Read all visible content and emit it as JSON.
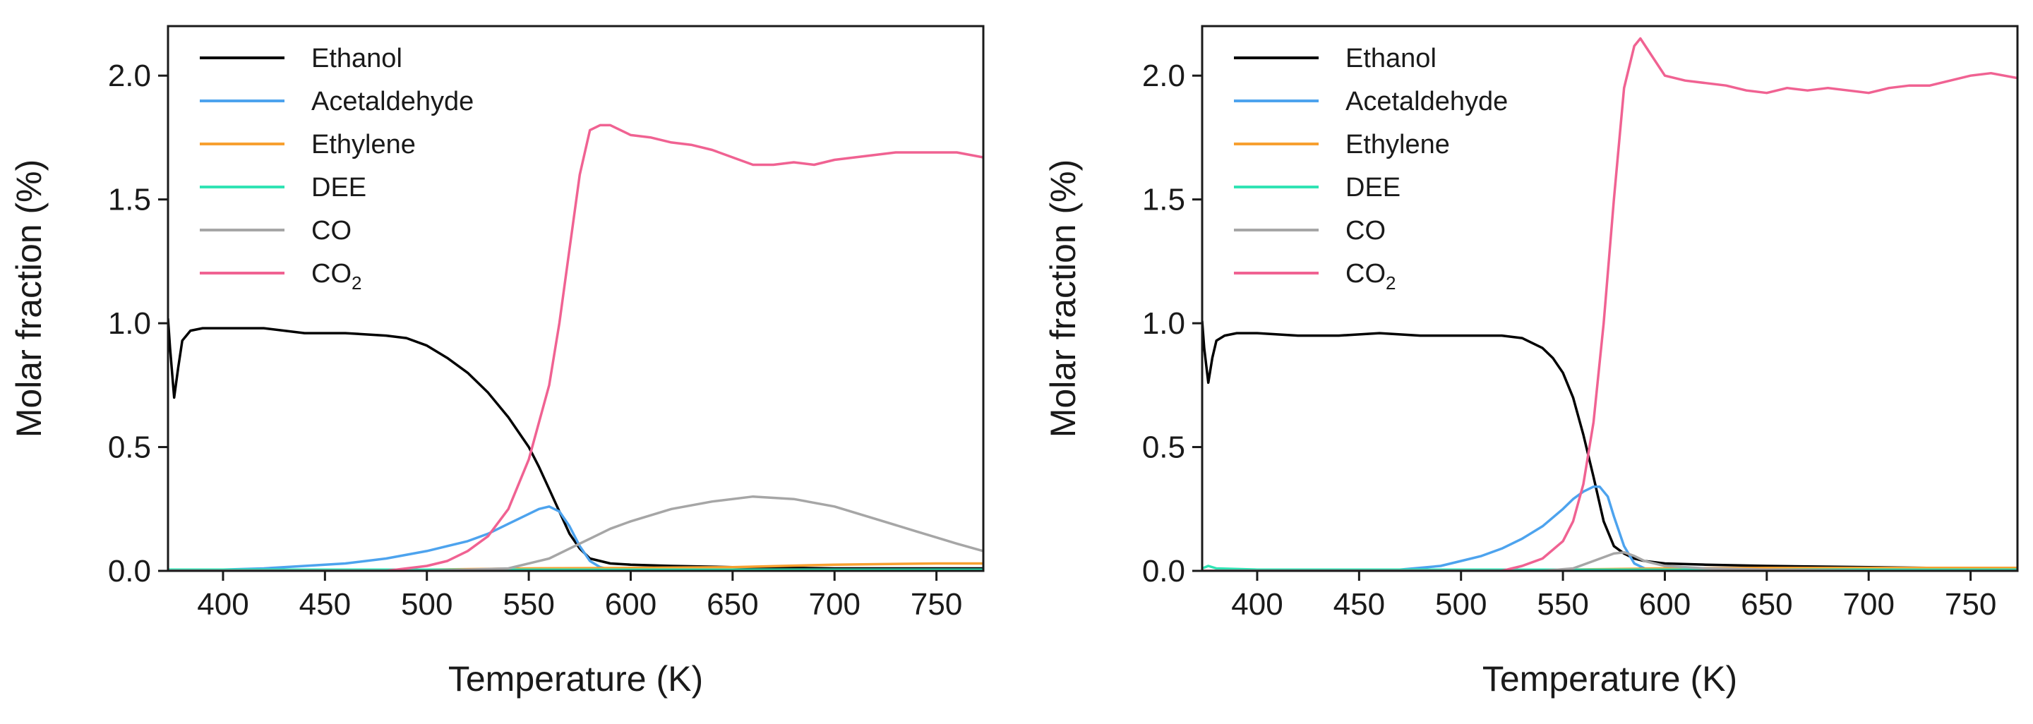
{
  "figure": {
    "background": "#ffffff"
  },
  "chart_data": [
    {
      "type": "line",
      "title": "",
      "xlabel": "Temperature (K)",
      "ylabel": "Molar fraction (%)",
      "xlim": [
        373,
        773
      ],
      "ylim": [
        0,
        2.2
      ],
      "xticks": [
        400,
        450,
        500,
        550,
        600,
        650,
        700,
        750
      ],
      "yticks": [
        0.0,
        0.5,
        1.0,
        1.5,
        2.0
      ],
      "xtick_labels": [
        "400",
        "450",
        "500",
        "550",
        "600",
        "650",
        "700",
        "750"
      ],
      "ytick_labels": [
        "0.0",
        "0.5",
        "1.0",
        "1.5",
        "2.0"
      ],
      "grid": false,
      "legend": {
        "position": "top-left"
      },
      "series": [
        {
          "name": "Ethanol",
          "color": "#000000",
          "x": [
            373,
            374,
            376,
            378,
            380,
            384,
            390,
            400,
            420,
            440,
            460,
            480,
            490,
            500,
            510,
            520,
            530,
            540,
            550,
            555,
            560,
            565,
            570,
            575,
            580,
            585,
            590,
            600,
            620,
            650,
            700,
            750,
            773
          ],
          "y": [
            1.02,
            0.9,
            0.7,
            0.82,
            0.93,
            0.97,
            0.98,
            0.98,
            0.98,
            0.96,
            0.96,
            0.95,
            0.94,
            0.91,
            0.86,
            0.8,
            0.72,
            0.62,
            0.5,
            0.42,
            0.33,
            0.24,
            0.15,
            0.09,
            0.05,
            0.04,
            0.03,
            0.025,
            0.02,
            0.015,
            0.01,
            0.01,
            0.01
          ]
        },
        {
          "name": "Acetaldehyde",
          "color": "#4da3ee",
          "x": [
            373,
            400,
            420,
            440,
            460,
            480,
            500,
            520,
            530,
            540,
            550,
            555,
            560,
            565,
            570,
            575,
            580,
            585,
            590,
            600,
            650,
            700,
            773
          ],
          "y": [
            0.0,
            0.005,
            0.01,
            0.02,
            0.03,
            0.05,
            0.08,
            0.12,
            0.15,
            0.19,
            0.23,
            0.25,
            0.26,
            0.24,
            0.18,
            0.1,
            0.04,
            0.015,
            0.005,
            0.0,
            0.0,
            0.0,
            0.0
          ]
        },
        {
          "name": "Ethylene",
          "color": "#f7a030",
          "x": [
            373,
            450,
            500,
            550,
            600,
            650,
            700,
            750,
            773
          ],
          "y": [
            0.0,
            0.0,
            0.005,
            0.01,
            0.012,
            0.015,
            0.025,
            0.03,
            0.03
          ]
        },
        {
          "name": "DEE",
          "color": "#30e3b4",
          "x": [
            373,
            450,
            500,
            550,
            600,
            650,
            700,
            773
          ],
          "y": [
            0.005,
            0.005,
            0.005,
            0.005,
            0.005,
            0.005,
            0.005,
            0.005
          ]
        },
        {
          "name": "CO",
          "color": "#a6a6a6",
          "x": [
            373,
            500,
            540,
            560,
            570,
            580,
            590,
            600,
            620,
            640,
            660,
            680,
            700,
            720,
            740,
            760,
            773
          ],
          "y": [
            0.0,
            0.0,
            0.01,
            0.05,
            0.09,
            0.13,
            0.17,
            0.2,
            0.25,
            0.28,
            0.3,
            0.29,
            0.26,
            0.21,
            0.16,
            0.11,
            0.08
          ]
        },
        {
          "name": "CO2",
          "legend_text": "CO",
          "legend_subscript": "2",
          "color": "#f06292",
          "x": [
            373,
            480,
            500,
            510,
            520,
            530,
            540,
            550,
            560,
            565,
            570,
            575,
            580,
            585,
            590,
            600,
            610,
            620,
            630,
            640,
            650,
            660,
            670,
            680,
            690,
            700,
            710,
            720,
            730,
            740,
            750,
            760,
            773
          ],
          "y": [
            0.0,
            0.0,
            0.02,
            0.04,
            0.08,
            0.14,
            0.25,
            0.45,
            0.75,
            1.0,
            1.3,
            1.6,
            1.78,
            1.8,
            1.8,
            1.76,
            1.75,
            1.73,
            1.72,
            1.7,
            1.67,
            1.64,
            1.64,
            1.65,
            1.64,
            1.66,
            1.67,
            1.68,
            1.69,
            1.69,
            1.69,
            1.69,
            1.67
          ]
        }
      ]
    },
    {
      "type": "line",
      "title": "",
      "xlabel": "Temperature (K)",
      "ylabel": "Molar fraction (%)",
      "xlim": [
        373,
        773
      ],
      "ylim": [
        0,
        2.2
      ],
      "xticks": [
        400,
        450,
        500,
        550,
        600,
        650,
        700,
        750
      ],
      "yticks": [
        0.0,
        0.5,
        1.0,
        1.5,
        2.0
      ],
      "xtick_labels": [
        "400",
        "450",
        "500",
        "550",
        "600",
        "650",
        "700",
        "750"
      ],
      "ytick_labels": [
        "0.0",
        "0.5",
        "1.0",
        "1.5",
        "2.0"
      ],
      "grid": false,
      "legend": {
        "position": "top-left"
      },
      "series": [
        {
          "name": "Ethanol",
          "color": "#000000",
          "x": [
            373,
            374,
            376,
            378,
            380,
            384,
            390,
            400,
            420,
            440,
            460,
            480,
            500,
            520,
            530,
            540,
            545,
            550,
            555,
            560,
            565,
            570,
            575,
            580,
            585,
            590,
            600,
            620,
            650,
            700,
            750,
            773
          ],
          "y": [
            1.01,
            0.9,
            0.76,
            0.86,
            0.93,
            0.95,
            0.96,
            0.96,
            0.95,
            0.95,
            0.96,
            0.95,
            0.95,
            0.95,
            0.94,
            0.9,
            0.86,
            0.8,
            0.7,
            0.55,
            0.38,
            0.2,
            0.1,
            0.07,
            0.05,
            0.04,
            0.03,
            0.025,
            0.02,
            0.015,
            0.01,
            0.01
          ]
        },
        {
          "name": "Acetaldehyde",
          "color": "#4da3ee",
          "x": [
            373,
            450,
            470,
            490,
            500,
            510,
            520,
            530,
            540,
            550,
            555,
            560,
            565,
            568,
            572,
            575,
            580,
            585,
            590,
            600,
            650,
            773
          ],
          "y": [
            0.0,
            0.0,
            0.005,
            0.02,
            0.04,
            0.06,
            0.09,
            0.13,
            0.18,
            0.25,
            0.29,
            0.32,
            0.34,
            0.34,
            0.3,
            0.22,
            0.1,
            0.03,
            0.01,
            0.0,
            0.0,
            0.0
          ]
        },
        {
          "name": "Ethylene",
          "color": "#f7a030",
          "x": [
            373,
            450,
            500,
            550,
            600,
            650,
            700,
            773
          ],
          "y": [
            0.0,
            0.0,
            0.0,
            0.005,
            0.01,
            0.012,
            0.012,
            0.012
          ]
        },
        {
          "name": "DEE",
          "color": "#30e3b4",
          "x": [
            373,
            376,
            380,
            400,
            500,
            600,
            700,
            773
          ],
          "y": [
            0.01,
            0.02,
            0.01,
            0.005,
            0.005,
            0.005,
            0.005,
            0.005
          ]
        },
        {
          "name": "CO",
          "color": "#a6a6a6",
          "x": [
            373,
            540,
            555,
            565,
            575,
            580,
            585,
            590,
            600,
            620,
            650,
            700,
            773
          ],
          "y": [
            0.0,
            0.0,
            0.01,
            0.04,
            0.07,
            0.075,
            0.06,
            0.04,
            0.02,
            0.01,
            0.005,
            0.0,
            0.0
          ]
        },
        {
          "name": "CO2",
          "legend_text": "CO",
          "legend_subscript": "2",
          "color": "#f06292",
          "x": [
            373,
            520,
            530,
            540,
            550,
            555,
            560,
            565,
            570,
            575,
            580,
            585,
            588,
            592,
            600,
            610,
            620,
            630,
            640,
            650,
            660,
            670,
            680,
            690,
            700,
            710,
            720,
            730,
            740,
            750,
            760,
            773
          ],
          "y": [
            0.0,
            0.0,
            0.02,
            0.05,
            0.12,
            0.2,
            0.35,
            0.6,
            1.0,
            1.5,
            1.95,
            2.12,
            2.15,
            2.1,
            2.0,
            1.98,
            1.97,
            1.96,
            1.94,
            1.93,
            1.95,
            1.94,
            1.95,
            1.94,
            1.93,
            1.95,
            1.96,
            1.96,
            1.98,
            2.0,
            2.01,
            1.99
          ]
        }
      ]
    }
  ]
}
